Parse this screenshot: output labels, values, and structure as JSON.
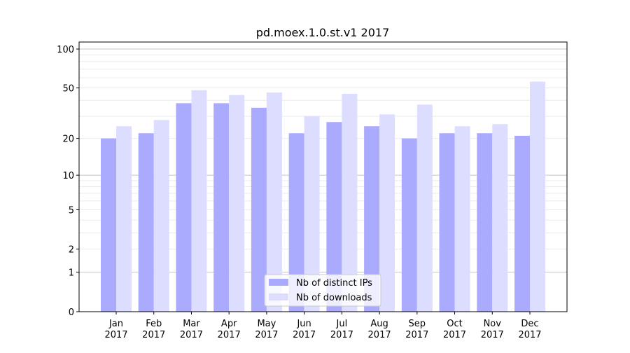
{
  "chart_data": {
    "type": "bar",
    "title": "pd.moex.1.0.st.v1 2017",
    "xlabel": "",
    "ylabel": "",
    "yscale": "log10(1+y)",
    "ylim": [
      0,
      116
    ],
    "yticks": [
      0,
      1,
      2,
      5,
      10,
      20,
      50,
      100
    ],
    "ytick_labels": [
      "0",
      "1",
      "2",
      "5",
      "10",
      "20",
      "50",
      "100"
    ],
    "grid": true,
    "categories": [
      [
        "Jan",
        "2017"
      ],
      [
        "Feb",
        "2017"
      ],
      [
        "Mar",
        "2017"
      ],
      [
        "Apr",
        "2017"
      ],
      [
        "May",
        "2017"
      ],
      [
        "Jun",
        "2017"
      ],
      [
        "Jul",
        "2017"
      ],
      [
        "Aug",
        "2017"
      ],
      [
        "Sep",
        "2017"
      ],
      [
        "Oct",
        "2017"
      ],
      [
        "Nov",
        "2017"
      ],
      [
        "Dec",
        "2017"
      ]
    ],
    "series": [
      {
        "name": "Nb of distinct IPs",
        "color": "#aaaaff",
        "values": [
          20,
          22,
          38,
          38,
          35,
          22,
          27,
          25,
          20,
          22,
          22,
          21
        ]
      },
      {
        "name": "Nb of downloads",
        "color": "#ddddff",
        "values": [
          25,
          28,
          48,
          44,
          46,
          30,
          45,
          31,
          37,
          25,
          26,
          56
        ]
      }
    ],
    "legend_position": "bottom-center"
  }
}
